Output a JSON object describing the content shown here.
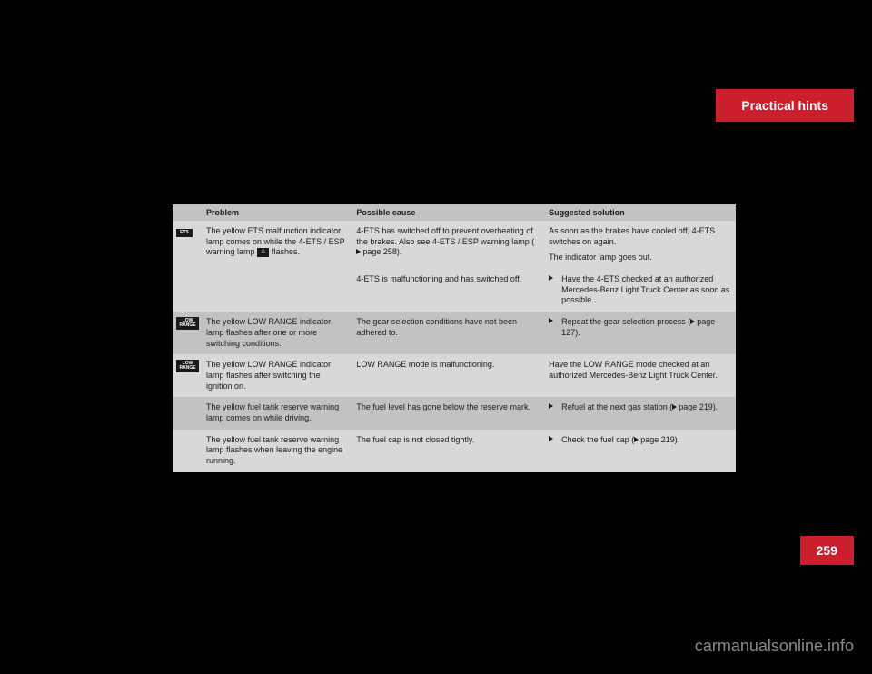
{
  "header": {
    "title": "Practical hints"
  },
  "page_number": "259",
  "watermark": "carmanualsonline.info",
  "table": {
    "headers": [
      "Problem",
      "Possible cause",
      "Suggested solution"
    ],
    "rows": [
      {
        "shade": "light",
        "icon": "ETS",
        "problem_pre": "The yellow ETS malfunction indi­cator lamp comes on while the 4-ETS / ESP warning lamp ",
        "problem_post": " flashes.",
        "inline_icon": "⚠",
        "cause_a": "4-ETS has switched off to prevent overheat­ing of the brakes. Also see 4-ETS / ESP warn­ing lamp (",
        "cause_a_ref": "page 258",
        "cause_a_end": ").",
        "cause_b": "4-ETS is malfunctioning and has switched off.",
        "solution_a1": "As soon as the brakes have cooled off, 4-ETS switches on again.",
        "solution_a2": "The indicator lamp goes out.",
        "solution_b": "Have the 4-ETS checked at an autho­rized Mercedes-Benz Light Truck Cen­ter as soon as possible."
      },
      {
        "shade": "dark",
        "icon": "LOW RANGE",
        "problem": "The yellow LOW RANGE indicator lamp flashes after one or more switching conditions.",
        "cause": "The gear selection conditions have not been adhered to.",
        "solution": "Repeat the gear selection process (",
        "solution_ref": "page 127",
        "solution_end": ")."
      },
      {
        "shade": "light",
        "icon": "LOW RANGE",
        "problem": "The yellow LOW RANGE indicator lamp flashes after switching the ignition on.",
        "cause": "LOW RANGE mode is malfunctioning.",
        "solution_plain": "Have the LOW RANGE mode checked at an authorized Mercedes-Benz Light Truck Center."
      },
      {
        "shade": "dark",
        "icon": "",
        "problem": "The yellow fuel tank reserve warning lamp comes on while driving.",
        "cause": "The fuel level has gone below the reserve mark.",
        "solution": "Refuel at the next gas station (",
        "solution_ref": "page 219",
        "solution_end": ")."
      },
      {
        "shade": "light",
        "icon": "",
        "problem": "The yellow fuel tank reserve warning lamp flashes when leav­ing the engine running.",
        "cause": "The fuel cap is not closed tightly.",
        "solution": "Check the fuel cap (",
        "solution_ref": "page 219",
        "solution_end": ")."
      }
    ]
  },
  "colors": {
    "brand_red": "#cc1f2d",
    "row_light": "#d8d8d8",
    "row_dark": "#c2c2c2",
    "text": "#1a1a1a",
    "background": "#000000"
  }
}
